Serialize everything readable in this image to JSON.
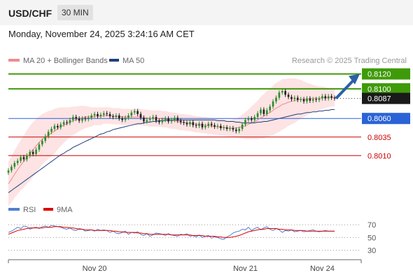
{
  "header": {
    "pair": "USD/CHF",
    "timeframe": "30 MIN",
    "timestamp": "Monday, November 24, 2025 3:24:16 AM CET"
  },
  "legend": {
    "ma20": {
      "label": "MA 20 + Bollinger Bands",
      "color": "#f28b8b"
    },
    "ma50": {
      "label": "MA 50",
      "color": "#1f3f7a"
    },
    "rsi": {
      "label": "RSI",
      "color": "#4f7fd0"
    },
    "rsi_ma": {
      "label": "9MA",
      "color": "#e00000"
    }
  },
  "credit": "Research © 2025 Trading Central",
  "chart_data": [
    {
      "type": "candlestick",
      "ylim": [
        0.7965,
        0.813
      ],
      "current_price": 0.8087,
      "x_ticks": [
        "Nov 20",
        "Nov 21",
        "Nov 24"
      ],
      "levels": [
        {
          "value": 0.812,
          "label": "0.8120",
          "kind": "resistance",
          "color": "#3f9a0a"
        },
        {
          "value": 0.81,
          "label": "0.8100",
          "kind": "resistance",
          "color": "#3f9a0a"
        },
        {
          "value": 0.8087,
          "label": "0.8087",
          "kind": "current",
          "color": "#1a1a1a"
        },
        {
          "value": 0.806,
          "label": "0.8060",
          "kind": "pivot",
          "color": "#2a63d6"
        },
        {
          "value": 0.8035,
          "label": "0.8035",
          "kind": "support",
          "color": "#cc0000"
        },
        {
          "value": 0.801,
          "label": "0.8010",
          "kind": "support",
          "color": "#cc0000"
        }
      ],
      "close": [
        0.799,
        0.7995,
        0.8,
        0.8003,
        0.8008,
        0.8005,
        0.801,
        0.8015,
        0.8012,
        0.8018,
        0.8025,
        0.803,
        0.8036,
        0.8042,
        0.8046,
        0.805,
        0.8048,
        0.8052,
        0.8055,
        0.8054,
        0.8058,
        0.8062,
        0.806,
        0.8057,
        0.806,
        0.8059,
        0.8061,
        0.8064,
        0.8066,
        0.8063,
        0.8065,
        0.8067,
        0.8066,
        0.8063,
        0.8062,
        0.8064,
        0.806,
        0.8058,
        0.8061,
        0.8064,
        0.8068,
        0.807,
        0.8066,
        0.8061,
        0.8056,
        0.8058,
        0.806,
        0.8062,
        0.8057,
        0.8055,
        0.8058,
        0.806,
        0.8056,
        0.8058,
        0.8061,
        0.8057,
        0.8055,
        0.8054,
        0.8052,
        0.8055,
        0.8051,
        0.805,
        0.8053,
        0.8048,
        0.805,
        0.8053,
        0.8051,
        0.8049,
        0.805,
        0.8047,
        0.8048,
        0.8046,
        0.8047,
        0.8045,
        0.8043,
        0.8046,
        0.8052,
        0.8058,
        0.806,
        0.8058,
        0.8062,
        0.8067,
        0.8072,
        0.8066,
        0.8071,
        0.8076,
        0.8083,
        0.8088,
        0.8095,
        0.8097,
        0.8092,
        0.8089,
        0.8086,
        0.8088,
        0.8085,
        0.8086,
        0.8083,
        0.8087,
        0.8084,
        0.8086,
        0.8085,
        0.8087,
        0.809,
        0.8087,
        0.809,
        0.8088,
        0.8087
      ],
      "ma20": [
        0.7972,
        0.7978,
        0.7985,
        0.7991,
        0.7997,
        0.8002,
        0.8008,
        0.8013,
        0.8018,
        0.8023,
        0.8028,
        0.8032,
        0.8035,
        0.8038,
        0.804,
        0.8043,
        0.8046,
        0.8049,
        0.8051,
        0.8053,
        0.8055,
        0.8057,
        0.8058,
        0.806,
        0.8061,
        0.8062,
        0.8062,
        0.8062,
        0.8063,
        0.8063,
        0.8063,
        0.8064,
        0.8064,
        0.8064,
        0.8063,
        0.8063,
        0.8063,
        0.8062,
        0.8062,
        0.8062,
        0.8062,
        0.8062,
        0.8062,
        0.8062,
        0.8061,
        0.8061,
        0.806,
        0.806,
        0.806,
        0.806,
        0.8059,
        0.8059,
        0.8058,
        0.8057,
        0.8057,
        0.8056,
        0.8055,
        0.8055,
        0.8054,
        0.8054,
        0.8053,
        0.8052,
        0.8052,
        0.8051,
        0.8051,
        0.805,
        0.805,
        0.8049,
        0.8049,
        0.8048,
        0.8048,
        0.8047,
        0.8047,
        0.8047,
        0.8047,
        0.8048,
        0.8049,
        0.805,
        0.8052,
        0.8054,
        0.8056,
        0.8058,
        0.8061,
        0.8063,
        0.8066,
        0.8068,
        0.8071,
        0.8074,
        0.8076,
        0.8079,
        0.808,
        0.8082,
        0.8083,
        0.8084,
        0.8085,
        0.8086,
        0.8086,
        0.8086,
        0.8087,
        0.8087,
        0.8087,
        0.8087,
        0.8088,
        0.8088,
        0.8088,
        0.8088,
        0.8088
      ],
      "boll_width": [
        0.003,
        0.0031,
        0.0032,
        0.0033,
        0.0034,
        0.0035,
        0.0036,
        0.0037,
        0.0037,
        0.0036,
        0.0035,
        0.0034,
        0.0033,
        0.0032,
        0.0031,
        0.003,
        0.0028,
        0.0026,
        0.0024,
        0.0022,
        0.002,
        0.0019,
        0.0018,
        0.0017,
        0.0016,
        0.0015,
        0.0014,
        0.0013,
        0.0012,
        0.0012,
        0.0012,
        0.0011,
        0.0011,
        0.0011,
        0.0011,
        0.0011,
        0.0011,
        0.0011,
        0.0011,
        0.0011,
        0.0011,
        0.0011,
        0.0011,
        0.0011,
        0.0011,
        0.0011,
        0.0011,
        0.0011,
        0.0011,
        0.0011,
        0.0011,
        0.0011,
        0.0011,
        0.0011,
        0.0011,
        0.0011,
        0.0011,
        0.0011,
        0.0011,
        0.0011,
        0.0011,
        0.0011,
        0.0011,
        0.0011,
        0.0011,
        0.0011,
        0.0011,
        0.0011,
        0.0011,
        0.0011,
        0.0011,
        0.0011,
        0.0011,
        0.0012,
        0.0013,
        0.0014,
        0.0016,
        0.0018,
        0.002,
        0.0022,
        0.0024,
        0.0026,
        0.0028,
        0.003,
        0.0031,
        0.0032,
        0.0033,
        0.0034,
        0.0034,
        0.0034,
        0.0033,
        0.0032,
        0.0031,
        0.003,
        0.0028,
        0.0026,
        0.0024,
        0.0022,
        0.002,
        0.0018,
        0.0017,
        0.0016,
        0.0015,
        0.0014,
        0.0013,
        0.0012,
        0.0012
      ],
      "ma50": [
        0.796,
        0.7963,
        0.7966,
        0.7969,
        0.7972,
        0.7975,
        0.7978,
        0.7981,
        0.7984,
        0.7987,
        0.799,
        0.7993,
        0.7996,
        0.7999,
        0.8002,
        0.8005,
        0.8008,
        0.8011,
        0.8013,
        0.8016,
        0.8018,
        0.8021,
        0.8023,
        0.8025,
        0.8027,
        0.8029,
        0.8031,
        0.8033,
        0.8035,
        0.8037,
        0.8039,
        0.804,
        0.8042,
        0.8043,
        0.8045,
        0.8046,
        0.8047,
        0.8048,
        0.8049,
        0.805,
        0.8051,
        0.8052,
        0.8053,
        0.8053,
        0.8054,
        0.8055,
        0.8055,
        0.8056,
        0.8056,
        0.8057,
        0.8057,
        0.8057,
        0.8058,
        0.8058,
        0.8058,
        0.8058,
        0.8058,
        0.8058,
        0.8058,
        0.8058,
        0.8058,
        0.8058,
        0.8058,
        0.8058,
        0.8058,
        0.8058,
        0.8058,
        0.8058,
        0.8057,
        0.8057,
        0.8057,
        0.8056,
        0.8056,
        0.8056,
        0.8055,
        0.8055,
        0.8054,
        0.8054,
        0.8054,
        0.8054,
        0.8054,
        0.8055,
        0.8055,
        0.8056,
        0.8056,
        0.8057,
        0.8058,
        0.8059,
        0.806,
        0.8061,
        0.8062,
        0.8063,
        0.8064,
        0.8065,
        0.8066,
        0.8066,
        0.8067,
        0.8068,
        0.8068,
        0.8069,
        0.8069,
        0.807,
        0.807,
        0.8071,
        0.8071,
        0.8072,
        0.8072
      ]
    },
    {
      "type": "line",
      "title": "RSI",
      "ylim": [
        25,
        80
      ],
      "y_ticks": [
        70,
        50,
        30
      ],
      "series": [
        {
          "name": "RSI",
          "values": [
            58,
            60,
            63,
            66,
            64,
            68,
            67,
            63,
            65,
            66,
            64,
            67,
            68,
            66,
            69,
            68,
            67,
            66,
            64,
            63,
            65,
            62,
            61,
            64,
            63,
            60,
            61,
            62,
            60,
            63,
            61,
            62,
            61,
            58,
            60,
            57,
            56,
            58,
            60,
            55,
            58,
            57,
            59,
            55,
            53,
            56,
            52,
            54,
            57,
            56,
            55,
            53,
            56,
            54,
            53,
            52,
            55,
            54,
            56,
            52,
            53,
            51,
            54,
            50,
            52,
            53,
            49,
            51,
            50,
            48,
            47,
            51,
            53,
            57,
            59,
            60,
            63,
            62,
            66,
            61,
            64,
            66,
            62,
            65,
            67,
            63,
            61,
            64,
            62,
            58,
            61,
            60,
            62,
            59,
            60,
            61,
            59,
            60,
            61,
            62,
            60,
            59,
            60,
            61,
            60,
            60,
            60
          ]
        },
        {
          "name": "9MA",
          "values": [
            55,
            57,
            59,
            61,
            62,
            63,
            64,
            65,
            65,
            65,
            65,
            65,
            66,
            66,
            66,
            67,
            67,
            67,
            66,
            66,
            65,
            65,
            64,
            63,
            63,
            62,
            62,
            62,
            61,
            61,
            61,
            61,
            61,
            61,
            60,
            60,
            59,
            59,
            58,
            58,
            58,
            58,
            57,
            57,
            56,
            56,
            55,
            55,
            55,
            55,
            55,
            55,
            55,
            54,
            54,
            54,
            54,
            54,
            54,
            54,
            53,
            53,
            53,
            53,
            52,
            52,
            52,
            52,
            51,
            51,
            50,
            50,
            50,
            51,
            52,
            53,
            55,
            57,
            59,
            60,
            61,
            62,
            63,
            63,
            64,
            64,
            64,
            64,
            63,
            63,
            62,
            62,
            62,
            61,
            61,
            61,
            61,
            60,
            60,
            60,
            60,
            60,
            60,
            60,
            60,
            60,
            60
          ]
        }
      ]
    }
  ]
}
